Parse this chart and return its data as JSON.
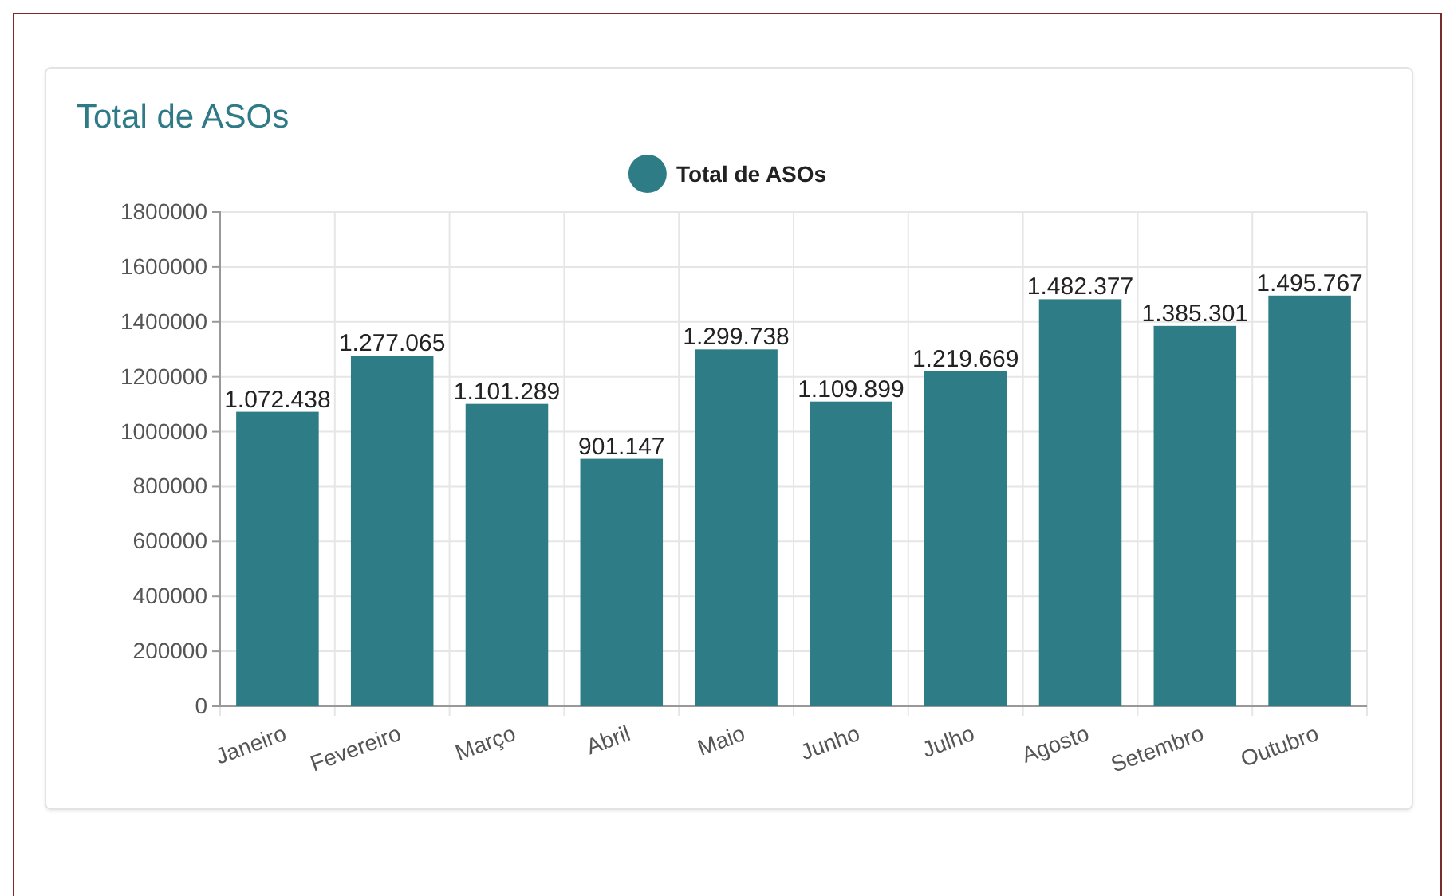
{
  "chart_data": {
    "type": "bar",
    "title": "Total de ASOs",
    "categories": [
      "Janeiro",
      "Fevereiro",
      "Março",
      "Abril",
      "Maio",
      "Junho",
      "Julho",
      "Agosto",
      "Setembro",
      "Outubro"
    ],
    "series": [
      {
        "name": "Total de ASOs",
        "color": "#2e7d86",
        "values": [
          1072438,
          1277065,
          1101289,
          901147,
          1299738,
          1109899,
          1219669,
          1482377,
          1385301,
          1495767
        ]
      }
    ],
    "value_labels": [
      "1.072.438",
      "1.277.065",
      "1.101.289",
      "901.147",
      "1.299.738",
      "1.109.899",
      "1.219.669",
      "1.482.377",
      "1.385.301",
      "1.495.767"
    ],
    "ylim": [
      0,
      1800000
    ],
    "yticks": [
      0,
      200000,
      400000,
      600000,
      800000,
      1000000,
      1200000,
      1400000,
      1600000,
      1800000
    ],
    "grid": true,
    "legend": "top"
  }
}
